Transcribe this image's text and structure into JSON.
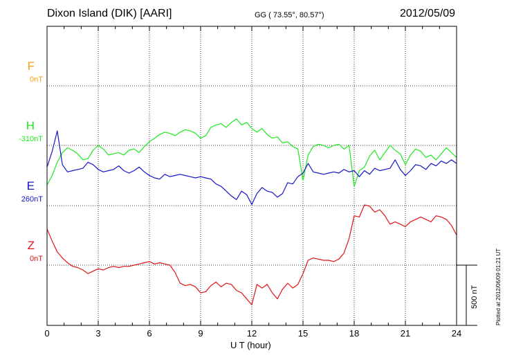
{
  "header": {
    "station": "Dixon Island (DIK)  [AARI]",
    "coords": "GG ( 73.55°,  80.57°)",
    "date": "2012/05/09"
  },
  "footer": {
    "plotted": "Plotted at 2012/06/09 01:21  UT"
  },
  "chart_data": {
    "type": "line",
    "xlabel": "U T (hour)",
    "xlim": [
      0,
      24
    ],
    "x_ticks": [
      "0",
      "3",
      "6",
      "9",
      "12",
      "15",
      "18",
      "21",
      "24"
    ],
    "scale_bar": "500 nT",
    "channels": [
      {
        "name": "F",
        "baseline": "0nT",
        "color": "#f2a20a"
      },
      {
        "name": "H",
        "baseline": "-310nT",
        "color": "#1ee81e"
      },
      {
        "name": "E",
        "baseline": "260nT",
        "color": "#1414c8"
      },
      {
        "name": "Z",
        "baseline": "0nT",
        "color": "#e01414"
      }
    ],
    "series": [
      {
        "name": "H",
        "x": [
          0,
          0.3,
          0.6,
          0.9,
          1.2,
          1.5,
          1.8,
          2.1,
          2.4,
          2.7,
          3.0,
          3.3,
          3.6,
          3.9,
          4.2,
          4.5,
          4.8,
          5.1,
          5.4,
          5.7,
          6.0,
          6.3,
          6.6,
          6.9,
          7.2,
          7.5,
          7.8,
          8.1,
          8.4,
          8.7,
          9.0,
          9.3,
          9.6,
          9.9,
          10.2,
          10.5,
          10.8,
          11.1,
          11.4,
          11.7,
          12.0,
          12.3,
          12.6,
          12.9,
          13.2,
          13.5,
          13.8,
          14.1,
          14.4,
          14.7,
          15.0,
          15.3,
          15.6,
          15.9,
          16.2,
          16.5,
          16.8,
          17.1,
          17.4,
          17.7,
          18.0,
          18.3,
          18.6,
          18.9,
          19.2,
          19.5,
          19.8,
          20.1,
          20.4,
          20.7,
          21.0,
          21.3,
          21.6,
          21.9,
          22.2,
          22.5,
          22.8,
          23.1,
          23.4,
          23.7,
          24.0
        ],
        "y": [
          -330,
          -250,
          -140,
          -60,
          -20,
          -40,
          -70,
          -120,
          -110,
          -40,
          0,
          -30,
          -80,
          -70,
          -60,
          -80,
          -40,
          -30,
          -60,
          -10,
          30,
          60,
          90,
          110,
          100,
          80,
          110,
          130,
          120,
          100,
          60,
          80,
          150,
          170,
          180,
          150,
          190,
          220,
          170,
          190,
          140,
          110,
          140,
          90,
          60,
          70,
          20,
          30,
          -10,
          -30,
          -290,
          -80,
          -10,
          10,
          0,
          -20,
          0,
          10,
          -30,
          0,
          -340,
          -210,
          -180,
          -90,
          -40,
          -120,
          -60,
          0,
          -40,
          -70,
          -160,
          -80,
          -30,
          -50,
          -100,
          -80,
          -120,
          -70,
          -20,
          -60,
          -100
        ]
      },
      {
        "name": "E",
        "x": [
          0,
          0.3,
          0.6,
          0.9,
          1.2,
          1.5,
          1.8,
          2.1,
          2.4,
          2.7,
          3.0,
          3.3,
          3.6,
          3.9,
          4.2,
          4.5,
          4.8,
          5.1,
          5.4,
          5.7,
          6.0,
          6.3,
          6.6,
          6.9,
          7.2,
          7.5,
          7.8,
          8.1,
          8.4,
          8.7,
          9.0,
          9.3,
          9.6,
          9.9,
          10.2,
          10.5,
          10.8,
          11.1,
          11.4,
          11.7,
          12.0,
          12.3,
          12.6,
          12.9,
          13.2,
          13.5,
          13.8,
          14.1,
          14.4,
          14.7,
          15.0,
          15.3,
          15.6,
          15.9,
          16.2,
          16.5,
          16.8,
          17.1,
          17.4,
          17.7,
          18.0,
          18.3,
          18.6,
          18.9,
          19.2,
          19.5,
          19.8,
          20.1,
          20.4,
          20.7,
          21.0,
          21.3,
          21.6,
          21.9,
          22.2,
          22.5,
          22.8,
          23.1,
          23.4,
          23.7,
          24.0
        ],
        "y": [
          320,
          450,
          620,
          340,
          280,
          290,
          300,
          310,
          360,
          340,
          300,
          280,
          290,
          300,
          330,
          290,
          270,
          290,
          320,
          280,
          250,
          230,
          220,
          260,
          240,
          250,
          260,
          250,
          240,
          230,
          240,
          230,
          220,
          180,
          160,
          120,
          80,
          50,
          120,
          90,
          10,
          100,
          150,
          120,
          110,
          70,
          100,
          190,
          180,
          240,
          270,
          350,
          280,
          270,
          260,
          270,
          280,
          270,
          300,
          280,
          290,
          240,
          290,
          260,
          310,
          290,
          300,
          310,
          380,
          300,
          250,
          290,
          340,
          330,
          300,
          350,
          330,
          370,
          350,
          380,
          350
        ]
      },
      {
        "name": "Z",
        "x": [
          0,
          0.3,
          0.6,
          0.9,
          1.2,
          1.5,
          1.8,
          2.1,
          2.4,
          2.7,
          3.0,
          3.3,
          3.6,
          3.9,
          4.2,
          4.5,
          4.8,
          5.1,
          5.4,
          5.7,
          6.0,
          6.3,
          6.6,
          6.9,
          7.2,
          7.5,
          7.8,
          8.1,
          8.4,
          8.7,
          9.0,
          9.3,
          9.6,
          9.9,
          10.2,
          10.5,
          10.8,
          11.1,
          11.4,
          11.7,
          12.0,
          12.3,
          12.6,
          12.9,
          13.2,
          13.5,
          13.8,
          14.1,
          14.4,
          14.7,
          15.0,
          15.3,
          15.6,
          15.9,
          16.2,
          16.5,
          16.8,
          17.1,
          17.4,
          17.7,
          18.0,
          18.3,
          18.6,
          18.9,
          19.2,
          19.5,
          19.8,
          20.1,
          20.4,
          20.7,
          21.0,
          21.3,
          21.6,
          21.9,
          22.2,
          22.5,
          22.8,
          23.1,
          23.4,
          23.7,
          24.0
        ],
        "y": [
          300,
          200,
          110,
          60,
          20,
          -10,
          -20,
          -40,
          -70,
          -50,
          -30,
          -40,
          -20,
          -10,
          -20,
          -10,
          -10,
          0,
          10,
          20,
          30,
          10,
          20,
          10,
          0,
          -60,
          -150,
          -170,
          -160,
          -180,
          -230,
          -220,
          -170,
          -140,
          -180,
          -150,
          -160,
          -210,
          -230,
          -280,
          -330,
          -160,
          -190,
          -160,
          -230,
          -280,
          -200,
          -150,
          -190,
          -160,
          -70,
          40,
          60,
          50,
          40,
          40,
          30,
          50,
          100,
          220,
          410,
          400,
          500,
          490,
          440,
          460,
          410,
          340,
          360,
          340,
          320,
          360,
          380,
          400,
          380,
          360,
          410,
          400,
          380,
          330,
          250
        ]
      }
    ]
  }
}
